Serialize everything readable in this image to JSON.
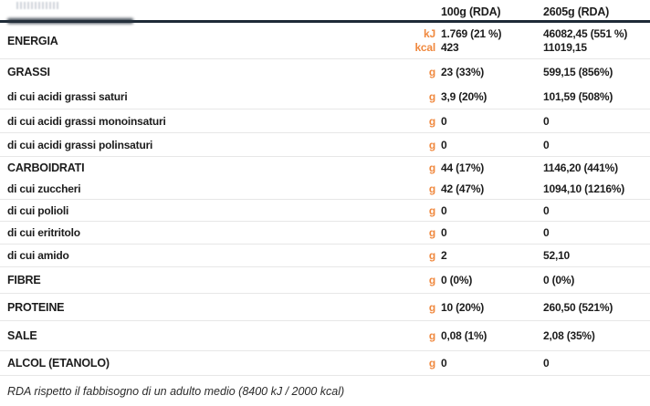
{
  "table": {
    "header": {
      "col1": "100g (RDA)",
      "col2": "2605g (RDA)"
    },
    "rows": [
      {
        "label": "ENERGIA",
        "type": "main",
        "lines": [
          {
            "unit": "kJ",
            "col1": "1.769 (21 %)",
            "col2": "46082,45 (551 %)"
          },
          {
            "unit": "kcal",
            "col1": "423",
            "col2": "11019,15"
          }
        ]
      },
      {
        "label": "GRASSI",
        "type": "main",
        "unit": "g",
        "col1": "23 (33%)",
        "col2": "599,15 (856%)",
        "group_with_next": true
      },
      {
        "label": "di cui acidi grassi saturi",
        "type": "sub",
        "unit": "g",
        "col1": "3,9 (20%)",
        "col2": "101,59 (508%)"
      },
      {
        "label": "di cui acidi grassi monoinsaturi",
        "type": "sub",
        "unit": "g",
        "col1": "0",
        "col2": "0"
      },
      {
        "label": "di cui acidi grassi polinsaturi",
        "type": "sub",
        "unit": "g",
        "col1": "0",
        "col2": "0"
      },
      {
        "label": "CARBOIDRATI",
        "type": "main",
        "unit": "g",
        "col1": "44 (17%)",
        "col2": "1146,20 (441%)",
        "group_with_next": true
      },
      {
        "label": "di cui zuccheri",
        "type": "sub",
        "unit": "g",
        "col1": "42 (47%)",
        "col2": "1094,10 (1216%)"
      },
      {
        "label": "di cui polioli",
        "type": "sub",
        "unit": "g",
        "col1": "0",
        "col2": "0"
      },
      {
        "label": "di cui eritritolo",
        "type": "sub",
        "unit": "g",
        "col1": "0",
        "col2": "0"
      },
      {
        "label": "di cui amido",
        "type": "sub",
        "unit": "g",
        "col1": "2",
        "col2": "52,10"
      },
      {
        "label": "FIBRE",
        "type": "main",
        "unit": "g",
        "col1": "0 (0%)",
        "col2": "0 (0%)"
      },
      {
        "label": "PROTEINE",
        "type": "main",
        "unit": "g",
        "col1": "10 (20%)",
        "col2": "260,50 (521%)"
      },
      {
        "label": "SALE",
        "type": "main",
        "unit": "g",
        "col1": "0,08 (1%)",
        "col2": "2,08 (35%)"
      },
      {
        "label": "ALCOL (ETANOLO)",
        "type": "main",
        "unit": "g",
        "col1": "0",
        "col2": "0"
      }
    ],
    "footnote": "RDA rispetto il fabbisogno di un adulto medio (8400 kJ / 2000 kcal)"
  },
  "colors": {
    "accent_orange": "#f0893f",
    "header_rule": "#1e2a37",
    "divider": "#e7e7e7",
    "text": "#1c1c1c"
  }
}
